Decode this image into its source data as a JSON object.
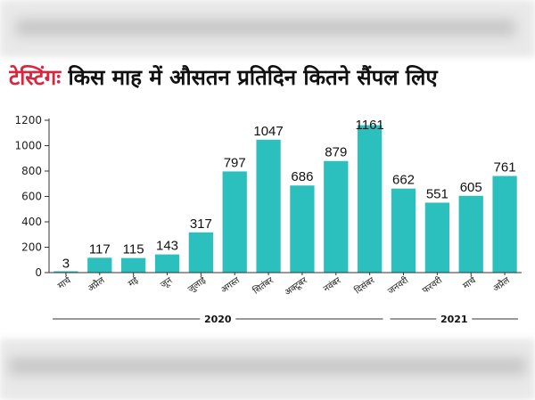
{
  "header": {
    "title_lead": "टेस्टिंगः",
    "title_rest": " किस माह में औसतन प्रतिदिन कितने सैंपल लिए"
  },
  "chart_data": {
    "type": "bar",
    "title": "टेस्टिंगः किस माह में औसतन प्रतिदिन कितने सैंपल लिए",
    "categories": [
      "मार्च",
      "अप्रैल",
      "मई",
      "जून",
      "जुलाई",
      "अगस्त",
      "सितंबर",
      "अक्टूबर",
      "नवंबर",
      "दिसंबर",
      "जनवरी",
      "फरवरी",
      "मार्च",
      "अप्रैल"
    ],
    "values": [
      3,
      117,
      115,
      143,
      317,
      797,
      1047,
      686,
      879,
      1161,
      662,
      551,
      605,
      761
    ],
    "value_labels": [
      "3",
      "117",
      "115",
      "143",
      "317",
      "797",
      "1047",
      "686",
      "879",
      "1161",
      "662",
      "551",
      "605",
      "761"
    ],
    "yticks": [
      "0",
      "200",
      "400",
      "600",
      "800",
      "1000",
      "1200"
    ],
    "ylim": [
      0,
      1200
    ],
    "groups": [
      {
        "label": "2020",
        "from": 0,
        "to": 9
      },
      {
        "label": "2021",
        "from": 10,
        "to": 13
      }
    ],
    "grid": false,
    "bar_color": "#2bbfbd"
  }
}
